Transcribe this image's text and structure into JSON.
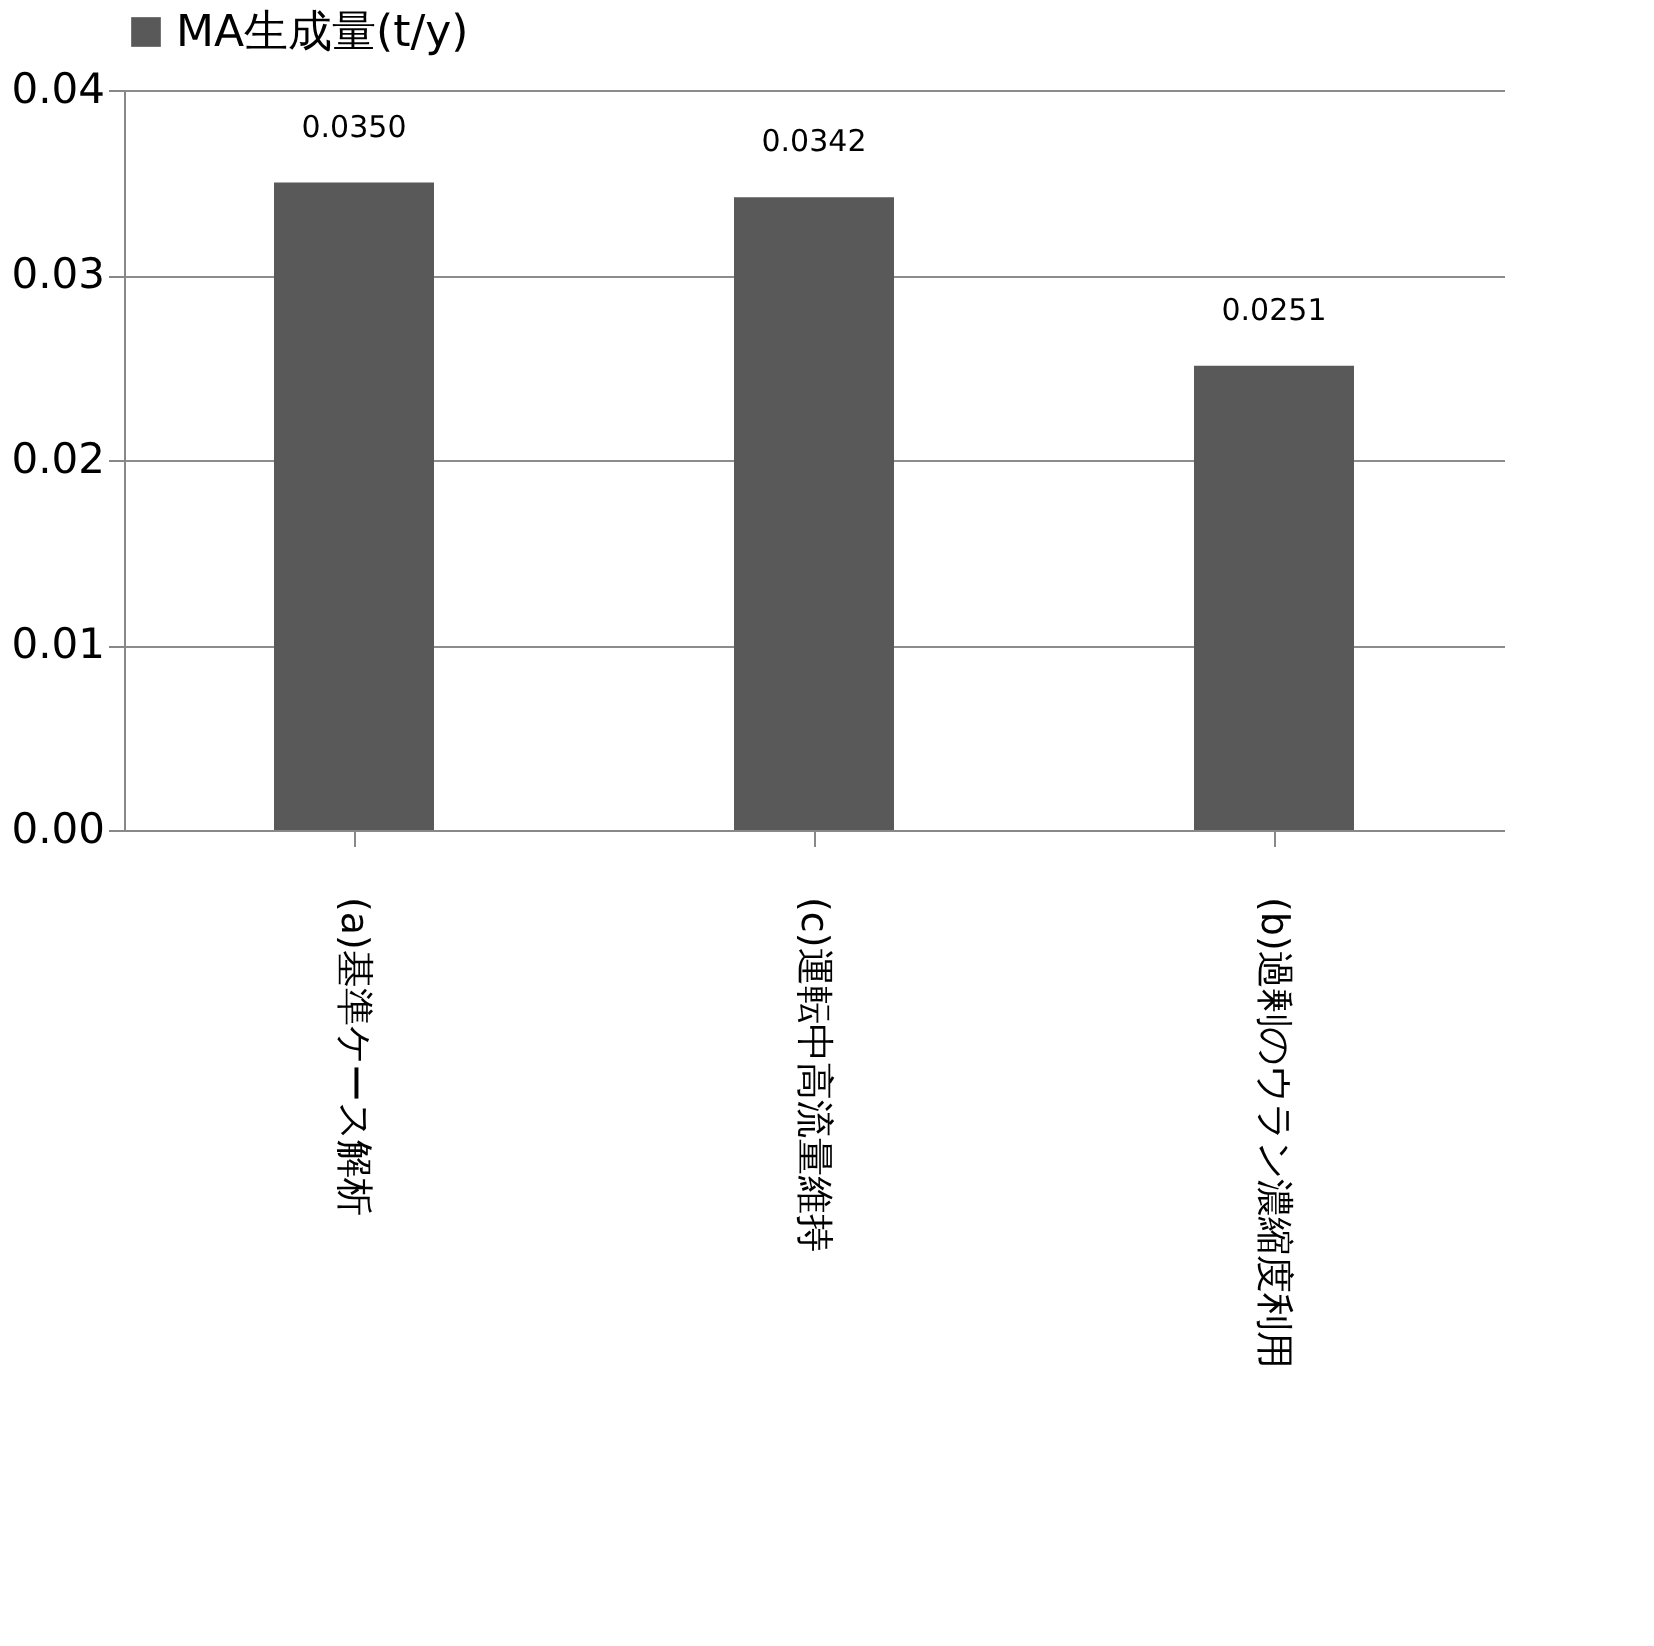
{
  "chart_data": {
    "type": "bar",
    "categories": [
      "(a)基準ケース解析",
      "(c)運転中高流量維持",
      "(b)過剰のウラン濃縮度利用"
    ],
    "series": [
      {
        "name": "MA生成量(t/y)",
        "color": "#595959",
        "values": [
          0.035,
          0.0342,
          0.0251
        ],
        "value_labels": [
          "0.0350",
          "0.0342",
          "0.0251"
        ]
      }
    ],
    "ylim": [
      0,
      0.04
    ],
    "yticks": [
      {
        "value": 0,
        "label": "0.00"
      },
      {
        "value": 0.01,
        "label": "0.01"
      },
      {
        "value": 0.02,
        "label": "0.02"
      },
      {
        "value": 0.03,
        "label": "0.03"
      },
      {
        "value": 0.04,
        "label": "0.04"
      }
    ],
    "grid": "y",
    "legend": "top"
  }
}
